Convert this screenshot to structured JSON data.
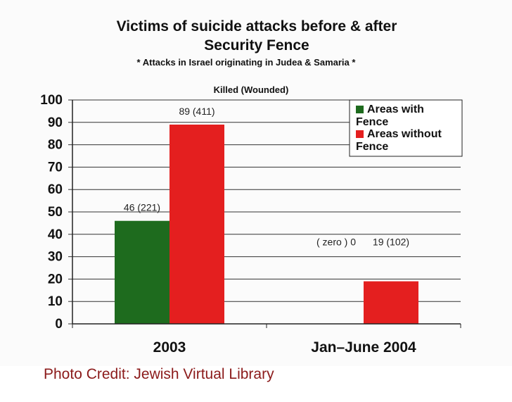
{
  "chart_data": {
    "type": "bar",
    "title": "Victims of suicide attacks before & after",
    "title_line2": "Security Fence",
    "subtitle": "* Attacks in Israel originating in Judea & Samaria *",
    "note": "Killed (Wounded)",
    "categories": [
      "2003",
      "Jan–June 2004"
    ],
    "series": [
      {
        "name": "Areas with Fence",
        "color": "#1e6b1e",
        "values": [
          46,
          0
        ],
        "labels": [
          "46 (221)",
          "( zero ) 0"
        ]
      },
      {
        "name": "Areas without Fence",
        "color": "#e41f1f",
        "values": [
          89,
          19
        ],
        "labels": [
          "89 (411)",
          "19 (102)"
        ]
      }
    ],
    "legend_lines": [
      [
        "Areas with",
        "Fence"
      ],
      [
        "Areas without",
        "Fence"
      ]
    ],
    "ylim": [
      0,
      100
    ],
    "yticks": [
      0,
      10,
      20,
      30,
      40,
      50,
      60,
      70,
      80,
      90,
      100
    ],
    "grid": true,
    "legend_position": "top-right"
  },
  "caption": "Photo Credit: Jewish Virtual Library"
}
